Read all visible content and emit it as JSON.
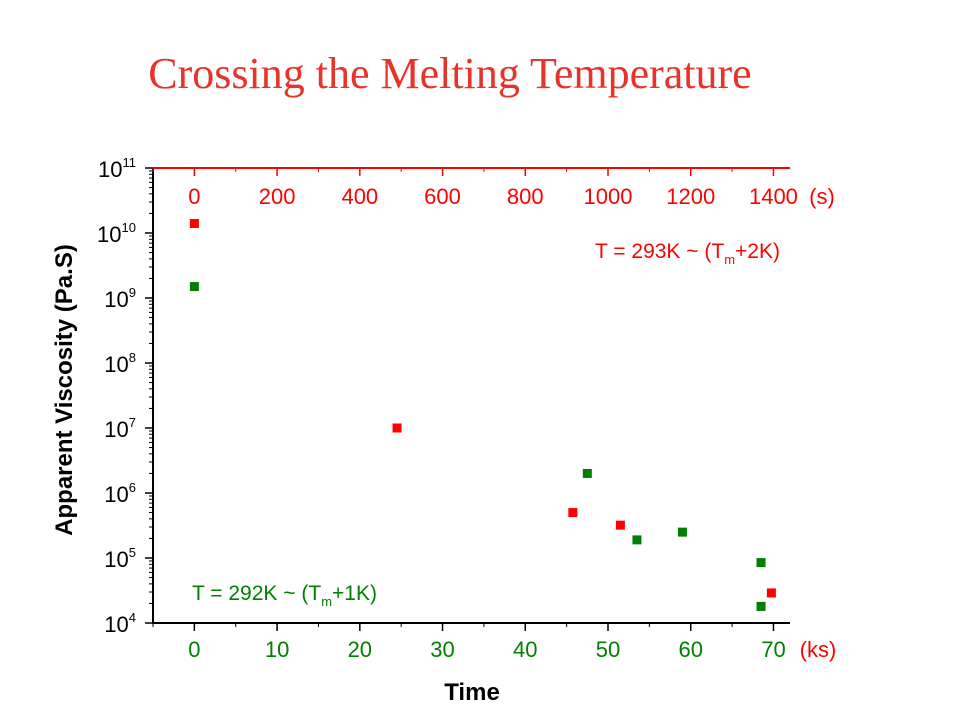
{
  "slide": {
    "title": "Crossing the Melting Temperature"
  },
  "colors": {
    "title": "#e8332a",
    "red_series": "#ff0000",
    "green_series": "#007f00",
    "axis": "#000000"
  },
  "chart_data": {
    "type": "scatter",
    "title": "",
    "ylabel": "Apparent Viscosity (Pa.S)",
    "xlabel": "Time",
    "y_scale": "log",
    "ylim": [
      10000,
      100000000000
    ],
    "y_ticks": [
      {
        "value": 10000,
        "base": "10",
        "exp": "4"
      },
      {
        "value": 100000,
        "base": "10",
        "exp": "5"
      },
      {
        "value": 1000000,
        "base": "10",
        "exp": "6"
      },
      {
        "value": 10000000,
        "base": "10",
        "exp": "7"
      },
      {
        "value": 100000000,
        "base": "10",
        "exp": "8"
      },
      {
        "value": 1000000000,
        "base": "10",
        "exp": "9"
      },
      {
        "value": 10000000000,
        "base": "10",
        "exp": "10"
      },
      {
        "value": 100000000000,
        "base": "10",
        "exp": "11"
      }
    ],
    "x_bottom": {
      "unit": "(ks)",
      "range": [
        -5,
        72
      ],
      "ticks": [
        "0",
        "10",
        "20",
        "30",
        "40",
        "50",
        "60",
        "70"
      ],
      "tick_values": [
        0,
        10,
        20,
        30,
        40,
        50,
        60,
        70
      ]
    },
    "x_top": {
      "unit": "(s)",
      "range": [
        -100,
        1440
      ],
      "ticks": [
        "0",
        "200",
        "400",
        "600",
        "800",
        "1000",
        "1200",
        "1400"
      ],
      "tick_values": [
        0,
        200,
        400,
        600,
        800,
        1000,
        1200,
        1400
      ]
    },
    "series": [
      {
        "label_prefix": "T = 293K ~ (T",
        "label_sub": "m",
        "label_suffix": "+2K)",
        "color": "#ff0000",
        "x_axis": "top",
        "points": [
          {
            "x": 0,
            "y": 14000000000
          },
          {
            "x": 490,
            "y": 10000000
          },
          {
            "x": 915,
            "y": 500000
          },
          {
            "x": 1030,
            "y": 320000
          },
          {
            "x": 1395,
            "y": 29000
          }
        ]
      },
      {
        "label_prefix": "T = 292K ~ (T",
        "label_sub": "m",
        "label_suffix": "+1K)",
        "color": "#007f00",
        "x_axis": "bottom",
        "points": [
          {
            "x": 0,
            "y": 1500000000
          },
          {
            "x": 47.5,
            "y": 2000000
          },
          {
            "x": 53.5,
            "y": 190000
          },
          {
            "x": 59,
            "y": 250000
          },
          {
            "x": 68.5,
            "y": 85000
          },
          {
            "x": 68.5,
            "y": 18000
          }
        ]
      }
    ]
  }
}
